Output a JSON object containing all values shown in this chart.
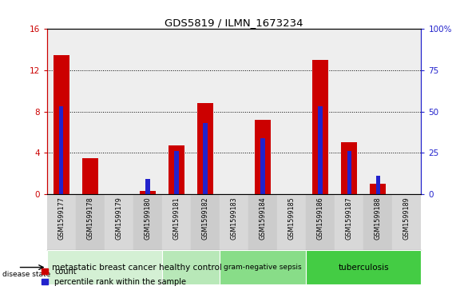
{
  "title": "GDS5819 / ILMN_1673234",
  "samples": [
    "GSM1599177",
    "GSM1599178",
    "GSM1599179",
    "GSM1599180",
    "GSM1599181",
    "GSM1599182",
    "GSM1599183",
    "GSM1599184",
    "GSM1599185",
    "GSM1599186",
    "GSM1599187",
    "GSM1599188",
    "GSM1599189"
  ],
  "count_values": [
    13.5,
    3.5,
    0.0,
    0.3,
    4.7,
    8.8,
    0.0,
    7.2,
    0.0,
    13.0,
    5.0,
    1.0,
    0.0
  ],
  "percentile_values": [
    53.0,
    0.0,
    0.0,
    9.0,
    26.0,
    43.0,
    0.0,
    34.0,
    0.0,
    53.0,
    26.0,
    11.0,
    0.0
  ],
  "ylim_left": [
    0,
    16
  ],
  "ylim_right": [
    0,
    100
  ],
  "yticks_left": [
    0,
    4,
    8,
    12,
    16
  ],
  "yticks_right": [
    0,
    25,
    50,
    75,
    100
  ],
  "color_count": "#cc0000",
  "color_percentile": "#2222cc",
  "groups": [
    {
      "label": "metastatic breast cancer",
      "start": 0,
      "end": 3,
      "color": "#d4f0d4"
    },
    {
      "label": "healthy control",
      "start": 4,
      "end": 5,
      "color": "#b8e8b8"
    },
    {
      "label": "gram-negative sepsis",
      "start": 6,
      "end": 8,
      "color": "#88dd88"
    },
    {
      "label": "tuberculosis",
      "start": 9,
      "end": 12,
      "color": "#44cc44"
    }
  ],
  "disease_state_label": "disease state",
  "legend_count": "count",
  "legend_percentile": "percentile rank within the sample",
  "tick_color_left": "#cc0000",
  "tick_color_right": "#2222cc",
  "xticklabel_bg": "#d0d0d0"
}
